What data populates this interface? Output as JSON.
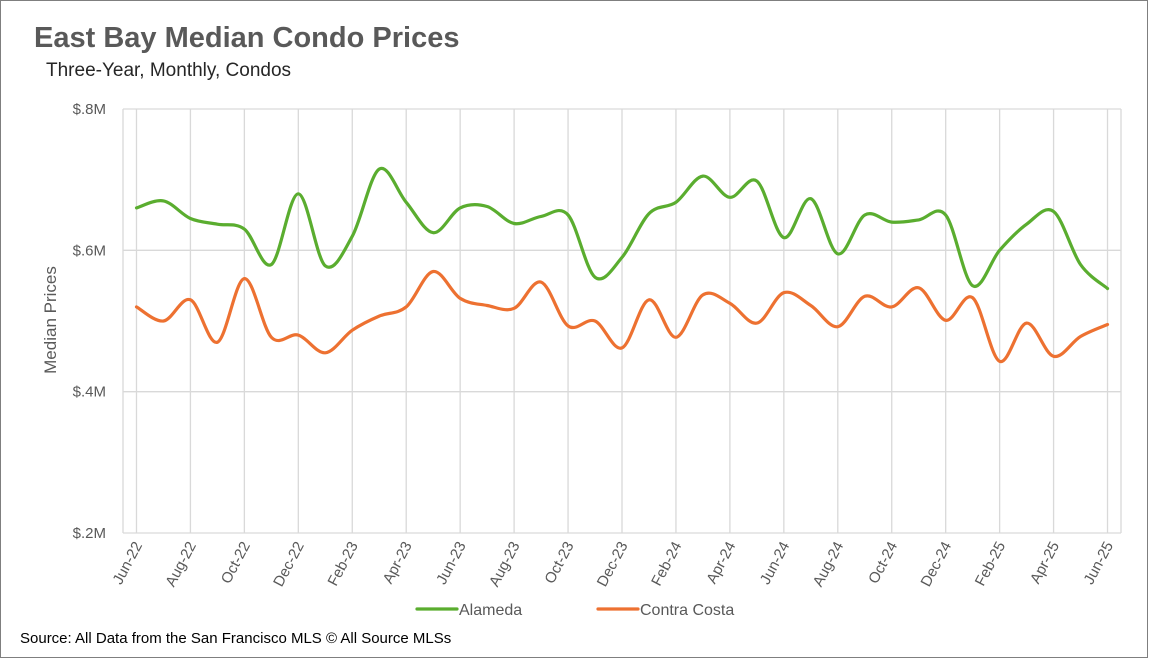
{
  "title": "East Bay Median Condo Prices",
  "subtitle": "Three-Year, Monthly, Condos",
  "source": "Source: All Data from the San Francisco MLS © All Source MLSs",
  "chart_data": {
    "type": "line",
    "title": "East Bay Median Condo Prices",
    "subtitle": "Three-Year, Monthly, Condos",
    "xlabel": "",
    "ylabel": "Median Prices",
    "ylim": [
      200000,
      800000
    ],
    "yticks": [
      200000,
      400000,
      600000,
      800000
    ],
    "ytick_labels": [
      "$.2M",
      "$.4M",
      "$.6M",
      "$.8M"
    ],
    "grid": "both",
    "legend": "bottom",
    "x": [
      "Jun-22",
      "Jul-22",
      "Aug-22",
      "Sep-22",
      "Oct-22",
      "Nov-22",
      "Dec-22",
      "Jan-23",
      "Feb-23",
      "Mar-23",
      "Apr-23",
      "May-23",
      "Jun-23",
      "Jul-23",
      "Aug-23",
      "Sep-23",
      "Oct-23",
      "Nov-23",
      "Dec-23",
      "Jan-24",
      "Feb-24",
      "Mar-24",
      "Apr-24",
      "May-24",
      "Jun-24",
      "Jul-24",
      "Aug-24",
      "Sep-24",
      "Oct-24",
      "Nov-24",
      "Dec-24",
      "Jan-25",
      "Feb-25",
      "Mar-25",
      "Apr-25",
      "May-25",
      "Jun-25"
    ],
    "xtick_labels": [
      "Jun-22",
      "Aug-22",
      "Oct-22",
      "Dec-22",
      "Feb-23",
      "Apr-23",
      "Jun-23",
      "Aug-23",
      "Oct-23",
      "Dec-23",
      "Feb-24",
      "Apr-24",
      "Jun-24",
      "Aug-24",
      "Oct-24",
      "Dec-24",
      "Feb-25",
      "Apr-25",
      "Jun-25"
    ],
    "series": [
      {
        "name": "Alameda",
        "color": "#5aad2f",
        "values": [
          660000,
          670000,
          645000,
          637000,
          630000,
          580000,
          680000,
          578000,
          620000,
          715000,
          668000,
          625000,
          660000,
          662000,
          638000,
          648000,
          650000,
          562000,
          590000,
          652000,
          668000,
          705000,
          675000,
          698000,
          618000,
          673000,
          595000,
          650000,
          640000,
          643000,
          650000,
          550000,
          600000,
          637000,
          655000,
          580000,
          546000
        ]
      },
      {
        "name": "Contra Costa",
        "color": "#ed7131",
        "values": [
          520000,
          500000,
          530000,
          470000,
          560000,
          477000,
          480000,
          455000,
          487000,
          507000,
          520000,
          570000,
          532000,
          522000,
          518000,
          555000,
          493000,
          500000,
          462000,
          530000,
          477000,
          537000,
          525000,
          497000,
          540000,
          522000,
          492000,
          535000,
          520000,
          547000,
          501000,
          533000,
          443000,
          497000,
          450000,
          478000,
          495000
        ]
      }
    ]
  }
}
